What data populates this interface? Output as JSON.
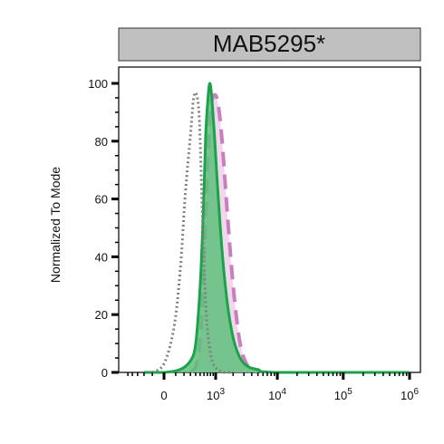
{
  "strip": {
    "title": "MAB5295*"
  },
  "colors": {
    "strip_fill": "#c0c0c0",
    "isotype": "#808080",
    "sample_line": "#1aa34a",
    "sample_fill": "#5fbf7c",
    "control_line": "#c97fbe",
    "control_fill": "#f0d3ea"
  },
  "chart_data": {
    "type": "area",
    "title": "MAB5295*",
    "xlabel": "",
    "ylabel": "Normalized To Mode",
    "x_scale": "biexponential",
    "ylim": [
      0,
      100
    ],
    "y_ticks": [
      {
        "value": 0,
        "label": "0"
      },
      {
        "value": 20,
        "label": "20"
      },
      {
        "value": 40,
        "label": "40"
      },
      {
        "value": 60,
        "label": "60"
      },
      {
        "value": 80,
        "label": "80"
      },
      {
        "value": 100,
        "label": "100"
      }
    ],
    "x_ticks": [
      {
        "value": 0,
        "base": "0",
        "exp": ""
      },
      {
        "value": 1000,
        "base": "10",
        "exp": "3"
      },
      {
        "value": 10000,
        "base": "10",
        "exp": "4"
      },
      {
        "value": 100000,
        "base": "10",
        "exp": "5"
      },
      {
        "value": 1000000,
        "base": "10",
        "exp": "6"
      }
    ],
    "grid": false,
    "series": [
      {
        "role": "isotype",
        "style": "dotted",
        "x": [
          -100,
          0,
          80,
          150,
          220,
          300,
          360,
          420,
          480,
          540,
          600,
          680,
          780,
          900,
          1100,
          1400,
          2000
        ],
        "y": [
          0,
          3,
          15,
          35,
          62,
          82,
          95,
          96,
          88,
          62,
          38,
          18,
          8,
          3,
          1,
          0,
          0
        ]
      },
      {
        "role": "control",
        "style": "dashed",
        "x": [
          300,
          420,
          520,
          620,
          720,
          820,
          950,
          1100,
          1300,
          1600,
          2000,
          2600,
          3500,
          5000
        ],
        "y": [
          0,
          3,
          15,
          45,
          75,
          92,
          96,
          93,
          80,
          55,
          30,
          10,
          2,
          0
        ]
      },
      {
        "role": "sample",
        "style": "solid",
        "x": [
          -200,
          0,
          150,
          300,
          400,
          500,
          580,
          650,
          720,
          780,
          850,
          950,
          1100,
          1300,
          1600,
          2000,
          2600,
          3500,
          5000,
          10000,
          1000000
        ],
        "y": [
          0,
          0,
          1,
          4,
          10,
          30,
          55,
          82,
          95,
          100,
          95,
          82,
          62,
          42,
          24,
          12,
          5,
          2,
          1,
          0,
          0
        ]
      }
    ]
  }
}
